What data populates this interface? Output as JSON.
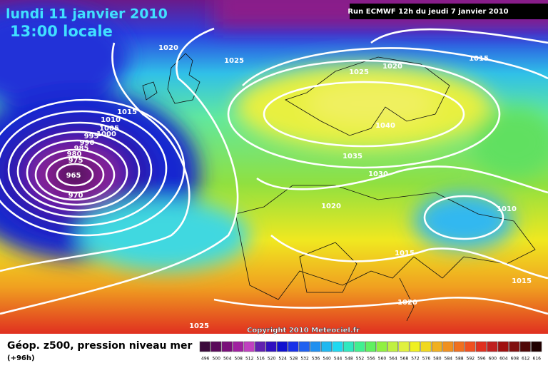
{
  "header": {
    "date": "lundi 11 janvier 2010",
    "time": "13:00 locale",
    "run": "Run ECMWF 12h du jeudi 7 janvier 2010"
  },
  "isobar_labels": [
    "1020",
    "1025",
    "1025",
    "1020",
    "1015",
    "1015",
    "1010",
    "1005",
    "1000",
    "995",
    "990",
    "985",
    "980",
    "975",
    "965",
    "970",
    "1040",
    "1035",
    "1030",
    "1020",
    "1010",
    "1015",
    "1015",
    "1020",
    "1025"
  ],
  "copyright": "Copyright 2010 Meteociel.fr",
  "legend": {
    "title": "Géop. z500, pression niveau mer",
    "lead": "(+96h)",
    "scale": [
      {
        "label": "496",
        "color": "#3c0a3c"
      },
      {
        "label": "500",
        "color": "#5a0a5a"
      },
      {
        "label": "504",
        "color": "#7a107a"
      },
      {
        "label": "508",
        "color": "#a020a0"
      },
      {
        "label": "512",
        "color": "#c040c0"
      },
      {
        "label": "516",
        "color": "#6020b0"
      },
      {
        "label": "520",
        "color": "#3010c0"
      },
      {
        "label": "524",
        "color": "#1010d0"
      },
      {
        "label": "528",
        "color": "#1830e8"
      },
      {
        "label": "532",
        "color": "#2060f0"
      },
      {
        "label": "536",
        "color": "#2090f0"
      },
      {
        "label": "540",
        "color": "#20b8f0"
      },
      {
        "label": "544",
        "color": "#20d8f0"
      },
      {
        "label": "548",
        "color": "#30e8c0"
      },
      {
        "label": "552",
        "color": "#40f090"
      },
      {
        "label": "556",
        "color": "#60f060"
      },
      {
        "label": "560",
        "color": "#90f040"
      },
      {
        "label": "564",
        "color": "#c0f040"
      },
      {
        "label": "568",
        "color": "#e0f040"
      },
      {
        "label": "572",
        "color": "#f0f020"
      },
      {
        "label": "576",
        "color": "#f0d820"
      },
      {
        "label": "580",
        "color": "#f0b020"
      },
      {
        "label": "584",
        "color": "#f09020"
      },
      {
        "label": "588",
        "color": "#f07020"
      },
      {
        "label": "592",
        "color": "#f05020"
      },
      {
        "label": "596",
        "color": "#e03020"
      },
      {
        "label": "600",
        "color": "#c02020"
      },
      {
        "label": "604",
        "color": "#a01010"
      },
      {
        "label": "608",
        "color": "#801010"
      },
      {
        "label": "612",
        "color": "#500808"
      },
      {
        "label": "616",
        "color": "#200000"
      }
    ]
  }
}
